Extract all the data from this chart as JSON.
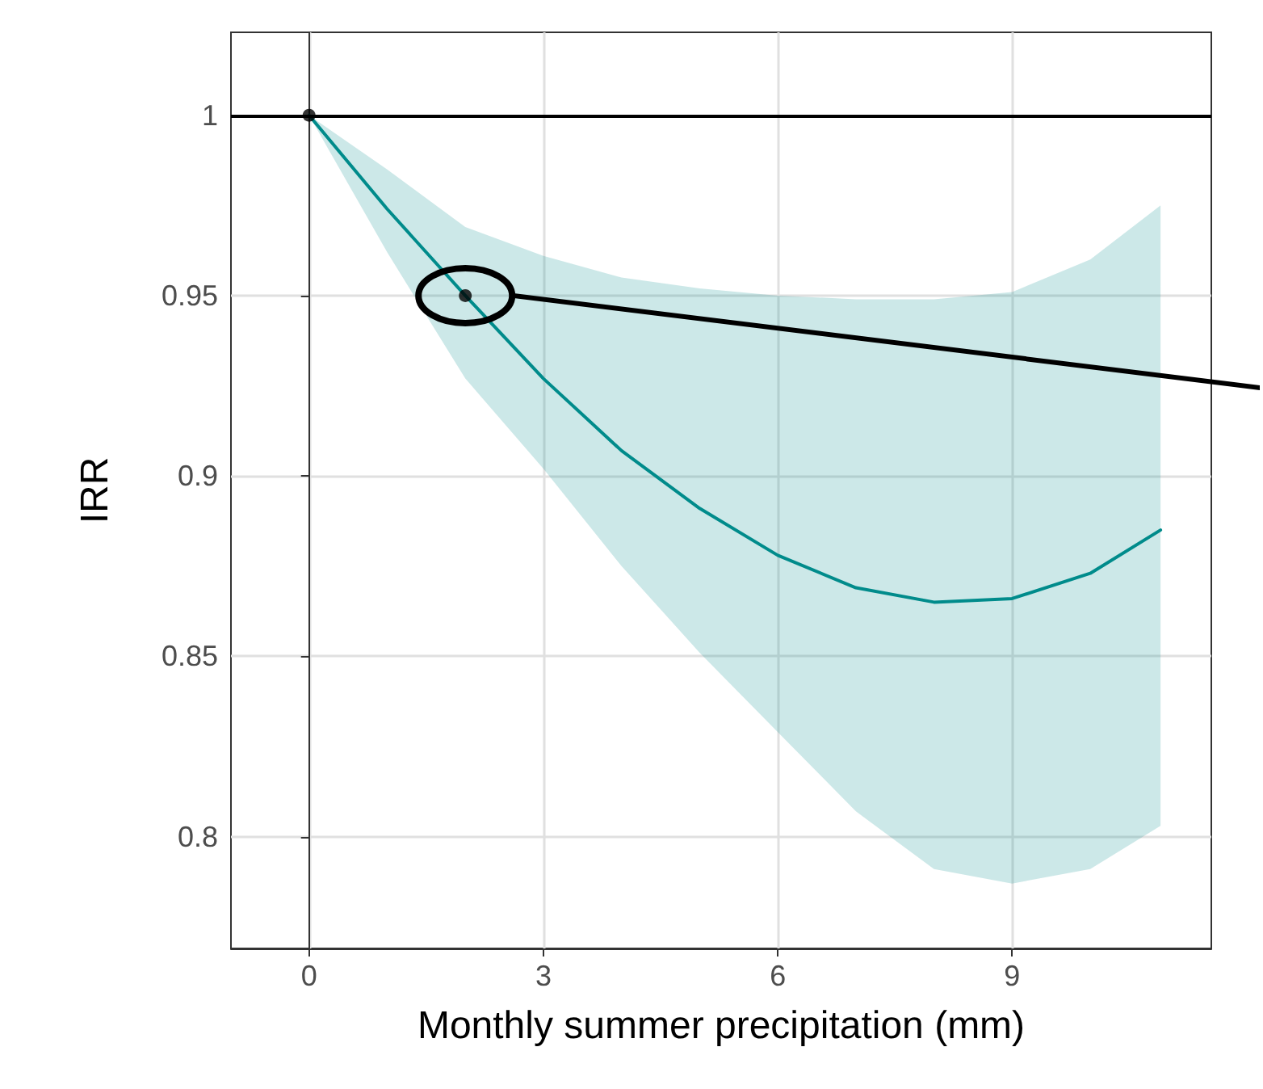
{
  "chart_data": {
    "type": "line",
    "xlabel": "Monthly summer precipitation (mm)",
    "ylabel": "IRR",
    "xlim": [
      -1,
      11.55
    ],
    "xticks": [
      0,
      3,
      6,
      9
    ],
    "ylim": [
      0.769,
      1.023
    ],
    "yticks": [
      0.8,
      0.85,
      0.9,
      0.95,
      1
    ],
    "grid": true,
    "marker": "none",
    "line_style": "solid",
    "ref_lines": [
      {
        "axis": "y",
        "value": 1,
        "color": "#000000"
      }
    ],
    "series": [
      {
        "color": "#008b8b",
        "x": [
          0,
          1,
          2,
          3,
          4,
          5,
          6,
          7,
          8,
          9,
          10,
          10.9
        ],
        "values": [
          1,
          0.974,
          0.95,
          0.927,
          0.907,
          0.891,
          0.878,
          0.869,
          0.865,
          0.866,
          0.873,
          0.885
        ],
        "lower": [
          1,
          0.962,
          0.927,
          0.902,
          0.875,
          0.851,
          0.829,
          0.807,
          0.791,
          0.787,
          0.791,
          0.803
        ],
        "upper": [
          1,
          0.985,
          0.969,
          0.961,
          0.955,
          0.952,
          0.95,
          0.949,
          0.949,
          0.951,
          0.96,
          0.975
        ]
      },
      {
        "type": "scatter",
        "color": "#000000",
        "marker": "circle",
        "x": [
          0,
          2
        ],
        "values": [
          1,
          0.95
        ]
      }
    ]
  }
}
